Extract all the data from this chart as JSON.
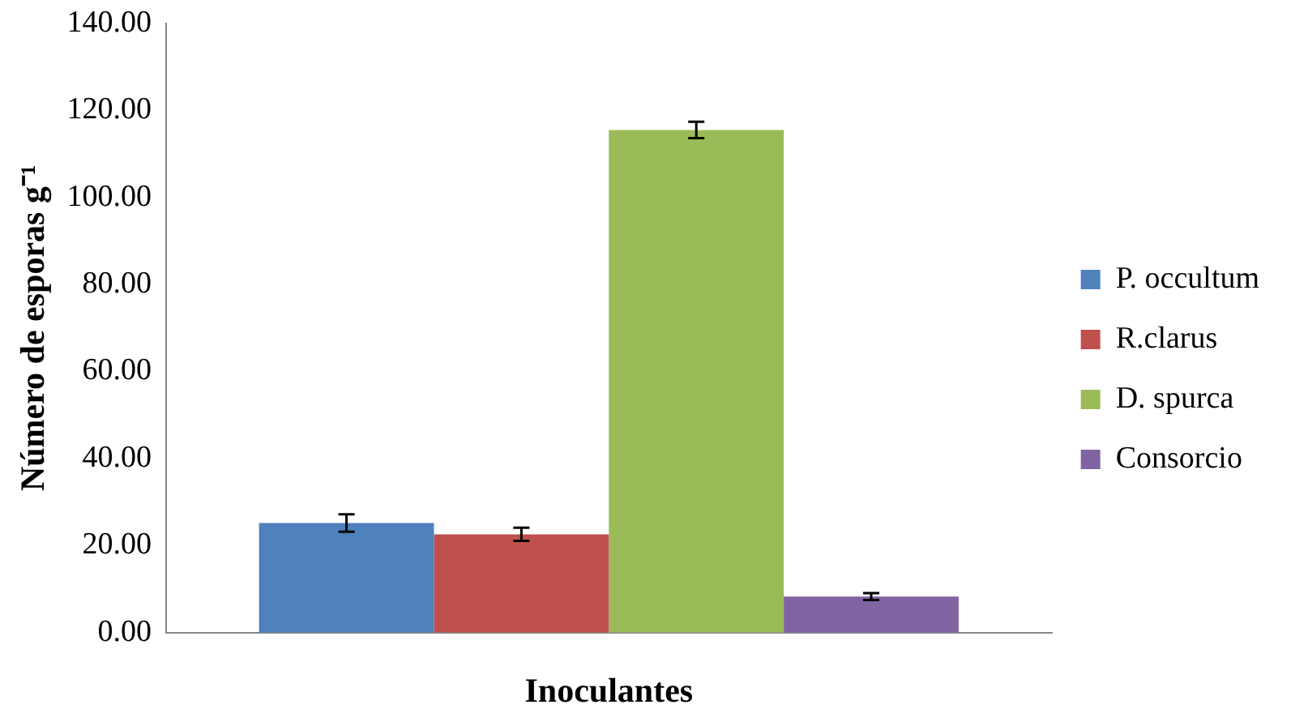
{
  "chart_data": {
    "type": "bar",
    "xlabel": "Inoculantes",
    "ylabel": "Número de esporas g⁻¹",
    "categories": [
      null
    ],
    "series": [
      {
        "name": "P. occultum",
        "color": "#4f81bd",
        "values": [
          25.2
        ],
        "errors": [
          2.0
        ]
      },
      {
        "name": "R.clarus",
        "color": "#c0504d",
        "values": [
          22.6
        ],
        "errors": [
          1.5
        ]
      },
      {
        "name": "D. spurca",
        "color": "#9bbb59",
        "values": [
          115.5
        ],
        "errors": [
          1.9
        ]
      },
      {
        "name": "Consorcio",
        "color": "#8064a2",
        "values": [
          8.3
        ],
        "errors": [
          0.8
        ]
      }
    ],
    "ylim": [
      0,
      140
    ],
    "yticks": [
      {
        "value": 0,
        "label": "0.00"
      },
      {
        "value": 20,
        "label": "20.00"
      },
      {
        "value": 40,
        "label": "40.00"
      },
      {
        "value": 60,
        "label": "60.00"
      },
      {
        "value": 80,
        "label": "80.00"
      },
      {
        "value": 100,
        "label": "100.00"
      },
      {
        "value": 120,
        "label": "120.00"
      },
      {
        "value": 140,
        "label": "140.00"
      }
    ],
    "grid": false,
    "legend": "right"
  }
}
